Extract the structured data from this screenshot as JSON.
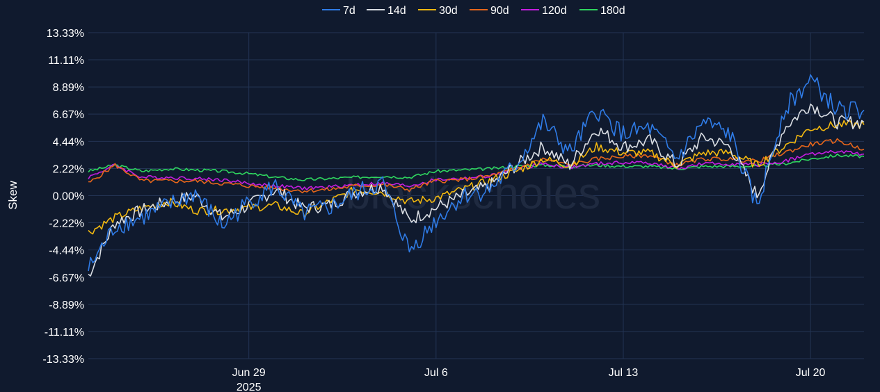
{
  "watermark": "blockscholes",
  "chart_data": {
    "type": "line",
    "ylabel": "Skew",
    "ylim": [
      -13.33,
      13.33
    ],
    "y_ticks": [
      13.33,
      11.11,
      8.89,
      6.67,
      4.44,
      2.22,
      0.0,
      -2.22,
      -4.44,
      -6.67,
      -8.89,
      -11.11,
      -13.33
    ],
    "y_tick_labels": [
      "13.33%",
      "11.11%",
      "8.89%",
      "6.67%",
      "4.44%",
      "2.22%",
      "0.00%",
      "-2.22%",
      "-4.44%",
      "-6.67%",
      "-8.89%",
      "-11.11%",
      "-13.33%"
    ],
    "xlim": [
      "2025-06-23",
      "2025-07-22"
    ],
    "x_ticks": [
      "2025-06-29",
      "2025-07-06",
      "2025-07-13",
      "2025-07-20"
    ],
    "x_tick_labels": [
      "Jun 29",
      "Jul 6",
      "Jul 13",
      "Jul 20"
    ],
    "x_year_label": "2025",
    "grid": true,
    "legend_position": "top-center",
    "x": [
      "2025-06-23",
      "2025-06-24",
      "2025-06-25",
      "2025-06-26",
      "2025-06-27",
      "2025-06-28",
      "2025-06-29",
      "2025-06-30",
      "2025-07-01",
      "2025-07-02",
      "2025-07-03",
      "2025-07-04",
      "2025-07-05",
      "2025-07-06",
      "2025-07-07",
      "2025-07-08",
      "2025-07-09",
      "2025-07-10",
      "2025-07-11",
      "2025-07-12",
      "2025-07-13",
      "2025-07-14",
      "2025-07-15",
      "2025-07-16",
      "2025-07-17",
      "2025-07-18",
      "2025-07-19",
      "2025-07-20",
      "2025-07-21",
      "2025-07-22"
    ],
    "series": [
      {
        "name": "7d",
        "color": "#2f7be6",
        "values": [
          -6.0,
          -2.5,
          -1.8,
          -0.8,
          0.2,
          -2.5,
          -0.5,
          0.8,
          -1.5,
          -1.0,
          0.2,
          1.0,
          -4.5,
          -2.0,
          0.0,
          0.5,
          2.5,
          6.0,
          3.5,
          7.0,
          5.0,
          5.5,
          3.0,
          6.0,
          5.0,
          -1.0,
          7.0,
          9.5,
          7.0,
          7.0
        ]
      },
      {
        "name": "14d",
        "color": "#d9dde3",
        "values": [
          -6.5,
          -2.2,
          -1.2,
          -0.5,
          0.0,
          -1.8,
          -0.8,
          0.5,
          -1.0,
          -0.8,
          0.3,
          0.8,
          -2.0,
          -1.0,
          0.0,
          0.8,
          2.5,
          4.0,
          2.5,
          5.5,
          4.0,
          4.5,
          2.5,
          4.8,
          4.0,
          0.0,
          5.5,
          7.5,
          6.0,
          6.0
        ]
      },
      {
        "name": "30d",
        "color": "#f2b810",
        "values": [
          -3.0,
          -1.8,
          -1.0,
          -0.5,
          -1.2,
          -1.2,
          -1.0,
          -0.8,
          -1.5,
          -0.5,
          0.5,
          0.3,
          -0.5,
          -0.2,
          0.5,
          1.2,
          2.0,
          3.0,
          2.5,
          4.0,
          3.5,
          3.5,
          2.5,
          3.5,
          3.5,
          2.5,
          4.0,
          5.5,
          5.8,
          5.8
        ]
      },
      {
        "name": "90d",
        "color": "#e6661b",
        "values": [
          1.0,
          2.5,
          1.2,
          1.2,
          1.2,
          1.0,
          0.8,
          0.6,
          0.4,
          0.5,
          0.8,
          0.9,
          0.5,
          1.2,
          1.3,
          1.6,
          2.2,
          3.0,
          2.5,
          3.0,
          3.2,
          3.3,
          2.5,
          3.0,
          3.0,
          2.8,
          3.5,
          4.2,
          4.5,
          3.8
        ]
      },
      {
        "name": "120d",
        "color": "#c41ee0",
        "values": [
          1.5,
          2.5,
          1.5,
          1.5,
          1.4,
          1.3,
          1.0,
          0.8,
          0.6,
          0.7,
          0.9,
          1.0,
          0.8,
          1.3,
          1.4,
          1.6,
          2.2,
          2.6,
          2.3,
          2.6,
          2.7,
          2.7,
          2.2,
          2.6,
          2.6,
          2.5,
          2.8,
          3.4,
          3.6,
          3.4
        ]
      },
      {
        "name": "180d",
        "color": "#2fd65f",
        "values": [
          2.0,
          2.5,
          2.0,
          2.2,
          2.1,
          2.0,
          1.8,
          1.5,
          1.3,
          1.4,
          1.5,
          1.6,
          1.5,
          2.0,
          2.1,
          2.2,
          2.4,
          2.5,
          2.4,
          2.5,
          2.4,
          2.4,
          2.2,
          2.4,
          2.4,
          2.4,
          2.6,
          3.0,
          3.3,
          3.2
        ]
      }
    ]
  }
}
